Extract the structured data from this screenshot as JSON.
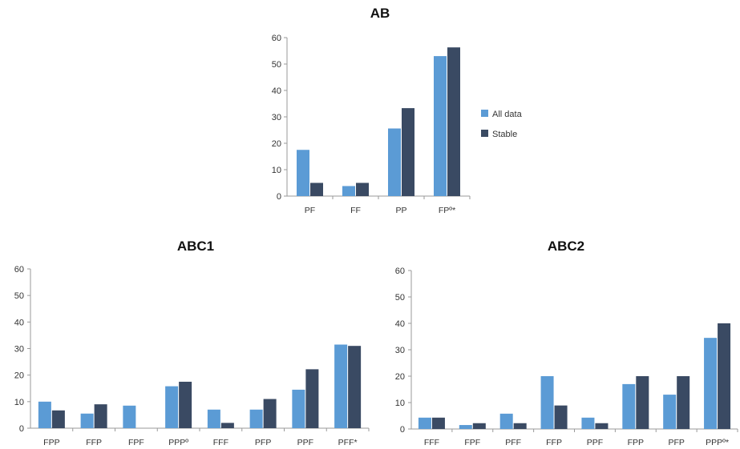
{
  "colors": {
    "all_data": "#5b9bd5",
    "stable": "#3a4a63",
    "axis": "#9a9a9a"
  },
  "legend": {
    "labels": [
      "All data",
      "Stable"
    ],
    "placement": "right of AB chart"
  },
  "chart_data": [
    {
      "type": "bar",
      "title": "AB",
      "categories": [
        "PF",
        "FF",
        "PP",
        "FPº*"
      ],
      "series": [
        {
          "name": "All data",
          "values": [
            17.5,
            3.8,
            25.6,
            53
          ]
        },
        {
          "name": "Stable",
          "values": [
            5,
            5,
            33.3,
            56.3
          ]
        }
      ],
      "ylim": [
        0,
        60
      ],
      "yticks": [
        0,
        10,
        20,
        30,
        40,
        50,
        60
      ],
      "grid": false
    },
    {
      "type": "bar",
      "title": "ABC1",
      "categories": [
        "FPP",
        "FFP",
        "FPF",
        "PPPº",
        "FFF",
        "PFP",
        "PPF",
        "PFF*"
      ],
      "series": [
        {
          "name": "All data",
          "values": [
            10,
            5.5,
            8.5,
            15.8,
            7,
            7,
            14.5,
            31.5
          ]
        },
        {
          "name": "Stable",
          "values": [
            6.7,
            9,
            0,
            17.5,
            2,
            11,
            22.2,
            31
          ]
        }
      ],
      "ylim": [
        0,
        60
      ],
      "yticks": [
        0,
        10,
        20,
        30,
        40,
        50,
        60
      ],
      "grid": false
    },
    {
      "type": "bar",
      "title": "ABC2",
      "categories": [
        "FFF",
        "FPF",
        "PFF",
        "FFP",
        "PPF",
        "FPP",
        "PFP",
        "PPPº*"
      ],
      "series": [
        {
          "name": "All data",
          "values": [
            4.3,
            1.5,
            5.8,
            20,
            4.3,
            17,
            13,
            34.5
          ]
        },
        {
          "name": "Stable",
          "values": [
            4.3,
            2.2,
            2.2,
            8.9,
            2.2,
            20,
            20,
            40
          ]
        }
      ],
      "ylim": [
        0,
        60
      ],
      "yticks": [
        0,
        10,
        20,
        30,
        40,
        50,
        60
      ],
      "grid": false
    }
  ]
}
